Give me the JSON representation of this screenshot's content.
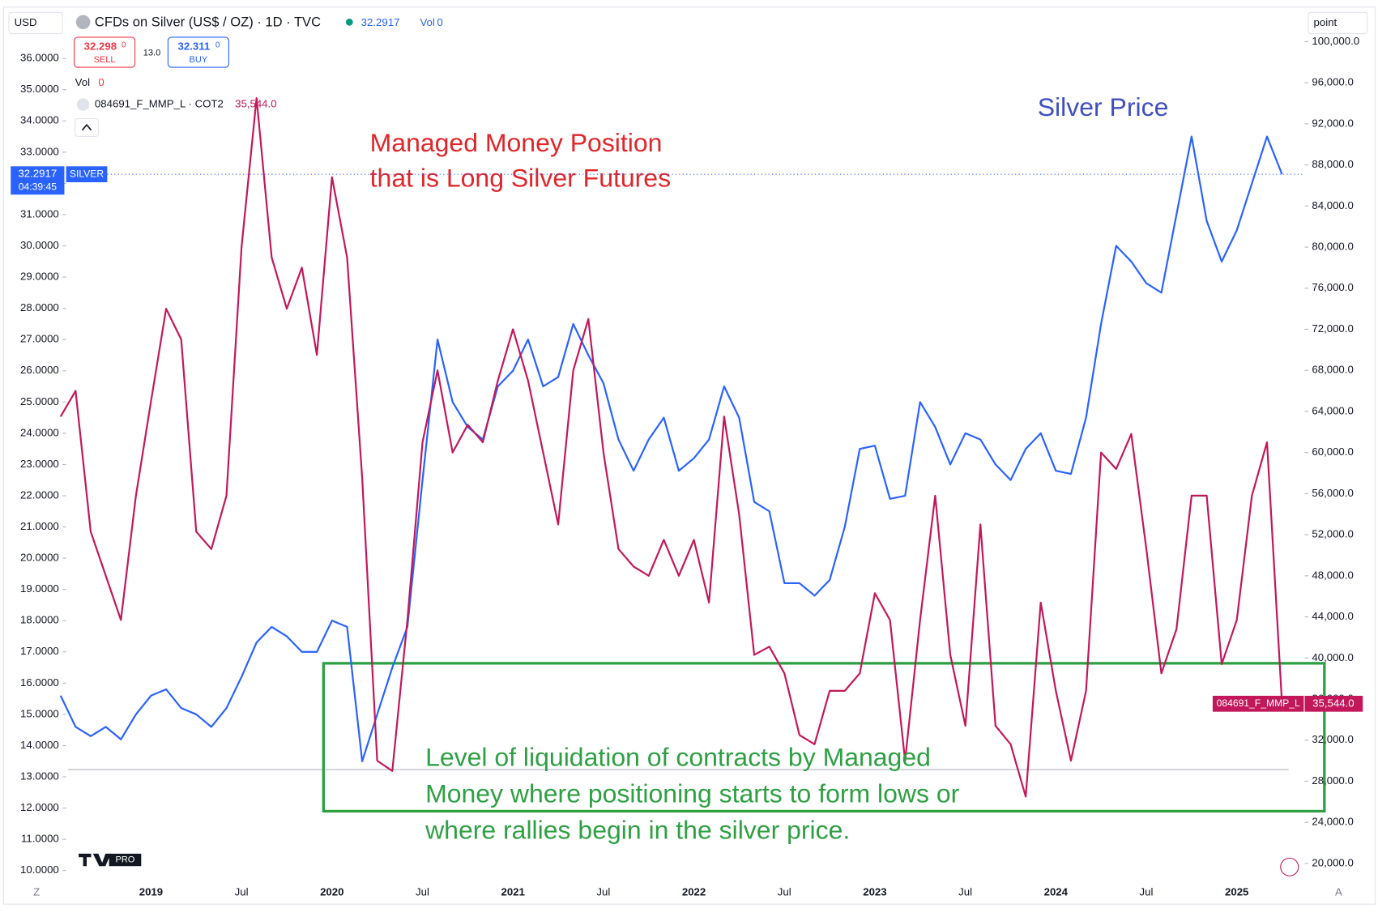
{
  "header": {
    "currency": "USD",
    "symbol": "CFDs on Silver (US$ / OZ) · 1D · TVC",
    "last": "32.2917",
    "vol_label": "Vol",
    "vol_value": "0",
    "sell_price": "32.298",
    "sell_digit": "0",
    "sell": "SELL",
    "spread": "13.0",
    "buy_price": "32.311",
    "buy_digit": "0",
    "buy": "BUY",
    "vol_row_label": "Vol",
    "vol_row_value": "0",
    "cot_name": "084691_F_MMP_L · COT2",
    "cot_value": "35,544.0",
    "scale_mode": "point",
    "silver_tag": "32.2917",
    "silver_tag_name": "SILVER",
    "countdown": "04:39:45",
    "cot_tag": "35,544.0",
    "cot_tag_name": "084691_F_MMP_L",
    "logo": "PRO",
    "left_btn": "Z",
    "right_btn": "A"
  },
  "chart_data": {
    "type": "line",
    "annotations": {
      "red_line1": "Managed Money Position",
      "red_line2": "that is Long Silver Futures",
      "blue": "Silver Price",
      "green_line1": "Level of liquidation of contracts by Managed",
      "green_line2": "Money where positioning starts to form lows or",
      "green_line3": "where rallies begin in the silver price."
    },
    "categories": [
      null,
      null,
      null,
      null,
      null,
      null,
      "2019",
      null,
      null,
      null,
      null,
      null,
      "Jul",
      null,
      null,
      null,
      null,
      null,
      "2020",
      null,
      null,
      null,
      null,
      null,
      "Jul",
      null,
      null,
      null,
      null,
      null,
      "2021",
      null,
      null,
      null,
      null,
      null,
      "Jul",
      null,
      null,
      null,
      null,
      null,
      "2022",
      null,
      null,
      null,
      null,
      null,
      "Jul",
      null,
      null,
      null,
      null,
      null,
      "2023",
      null,
      null,
      null,
      null,
      null,
      "Jul",
      null,
      null,
      null,
      null,
      null,
      "2024",
      null,
      null,
      null,
      null,
      null,
      "Jul",
      null,
      null,
      null,
      null,
      null,
      "2025",
      null,
      null,
      null
    ],
    "series": [
      {
        "name": "SILVER",
        "color": "#2962ff",
        "axis": "y",
        "values": [
          15.6,
          14.6,
          14.3,
          14.6,
          14.2,
          15.0,
          15.6,
          15.8,
          15.2,
          15.0,
          14.6,
          15.2,
          16.2,
          17.3,
          17.8,
          17.5,
          17.0,
          17.0,
          18.0,
          17.8,
          13.5,
          15.0,
          16.5,
          17.8,
          22.5,
          27.0,
          25.0,
          24.2,
          23.8,
          25.5,
          26.0,
          27.0,
          25.5,
          25.8,
          27.5,
          26.5,
          25.6,
          23.8,
          22.8,
          23.8,
          24.5,
          22.8,
          23.2,
          23.8,
          25.5,
          24.5,
          21.8,
          21.5,
          19.2,
          19.2,
          18.8,
          19.3,
          21.0,
          23.5,
          23.6,
          21.9,
          22.0,
          25.0,
          24.2,
          23.0,
          24.0,
          23.8,
          23.0,
          22.5,
          23.5,
          24.0,
          22.8,
          22.7,
          24.5,
          27.5,
          30.0,
          29.5,
          28.8,
          28.5,
          31.0,
          33.5,
          30.8,
          29.5,
          30.5,
          32.0,
          33.5,
          32.2917
        ]
      },
      {
        "name": "084691_F_MMP_L",
        "color": "#c2185b",
        "axis": "y2",
        "values": [
          63500,
          66000,
          52300,
          48000,
          43700,
          55800,
          65000,
          74000,
          71000,
          52300,
          50600,
          55800,
          80000,
          94500,
          79000,
          74000,
          78000,
          69500,
          86800,
          79000,
          57500,
          30000,
          29000,
          43700,
          61000,
          68000,
          60000,
          62700,
          61000,
          67000,
          72000,
          67000,
          60000,
          53000,
          68000,
          73000,
          60000,
          50600,
          48900,
          48000,
          51500,
          48000,
          51500,
          45400,
          63500,
          54000,
          40300,
          41100,
          38500,
          32500,
          31600,
          36800,
          36800,
          38500,
          46300,
          43700,
          30000,
          43700,
          55800,
          40300,
          33400,
          53000,
          33400,
          31600,
          26500,
          45400,
          36800,
          30000,
          36800,
          60000,
          58400,
          61800,
          50600,
          38500,
          42800,
          55800,
          55800,
          39400,
          43700,
          55800,
          61000,
          35544
        ]
      }
    ],
    "ylim": [
      10,
      36
    ],
    "yticks": [
      {
        "value": 10,
        "label": "10.0000"
      },
      {
        "value": 11,
        "label": "11.0000"
      },
      {
        "value": 12,
        "label": "12.0000"
      },
      {
        "value": 13,
        "label": "13.0000"
      },
      {
        "value": 14,
        "label": "14.0000"
      },
      {
        "value": 15,
        "label": "15.0000"
      },
      {
        "value": 16,
        "label": "16.0000"
      },
      {
        "value": 17,
        "label": "17.0000"
      },
      {
        "value": 18,
        "label": "18.0000"
      },
      {
        "value": 19,
        "label": "19.0000"
      },
      {
        "value": 20,
        "label": "20.0000"
      },
      {
        "value": 21,
        "label": "21.0000"
      },
      {
        "value": 22,
        "label": "22.0000"
      },
      {
        "value": 23,
        "label": "23.0000"
      },
      {
        "value": 24,
        "label": "24.0000"
      },
      {
        "value": 25,
        "label": "25.0000"
      },
      {
        "value": 26,
        "label": "26.0000"
      },
      {
        "value": 27,
        "label": "27.0000"
      },
      {
        "value": 28,
        "label": "28.0000"
      },
      {
        "value": 29,
        "label": "29.0000"
      },
      {
        "value": 30,
        "label": "30.0000"
      },
      {
        "value": 31,
        "label": "31.0000"
      },
      {
        "value": 32,
        "label": "32.0000"
      },
      {
        "value": 33,
        "label": "33.0000"
      },
      {
        "value": 34,
        "label": "34.0000"
      },
      {
        "value": 35,
        "label": "35.0000"
      },
      {
        "value": 36,
        "label": "36.0000"
      }
    ],
    "y2lim": [
      20000,
      100000
    ],
    "y2ticks": [
      {
        "value": 20000,
        "label": "20,000.0"
      },
      {
        "value": 24000,
        "label": "24,000.0"
      },
      {
        "value": 28000,
        "label": "28,000.0"
      },
      {
        "value": 32000,
        "label": "32,000.0"
      },
      {
        "value": 36000,
        "label": "36,000.0"
      },
      {
        "value": 40000,
        "label": "40,000.0"
      },
      {
        "value": 44000,
        "label": "44,000.0"
      },
      {
        "value": 48000,
        "label": "48,000.0"
      },
      {
        "value": 52000,
        "label": "52,000.0"
      },
      {
        "value": 56000,
        "label": "56,000.0"
      },
      {
        "value": 60000,
        "label": "60,000.0"
      },
      {
        "value": 64000,
        "label": "64,000.0"
      },
      {
        "value": 68000,
        "label": "68,000.0"
      },
      {
        "value": 72000,
        "label": "72,000.0"
      },
      {
        "value": 76000,
        "label": "76,000.0"
      },
      {
        "value": 80000,
        "label": "80,000.0"
      },
      {
        "value": 84000,
        "label": "84,000.0"
      },
      {
        "value": 88000,
        "label": "88,000.0"
      },
      {
        "value": 92000,
        "label": "92,000.0"
      },
      {
        "value": 96000,
        "label": "96,000.0"
      },
      {
        "value": 100000,
        "label": "100,000.0"
      }
    ],
    "grid": false
  }
}
